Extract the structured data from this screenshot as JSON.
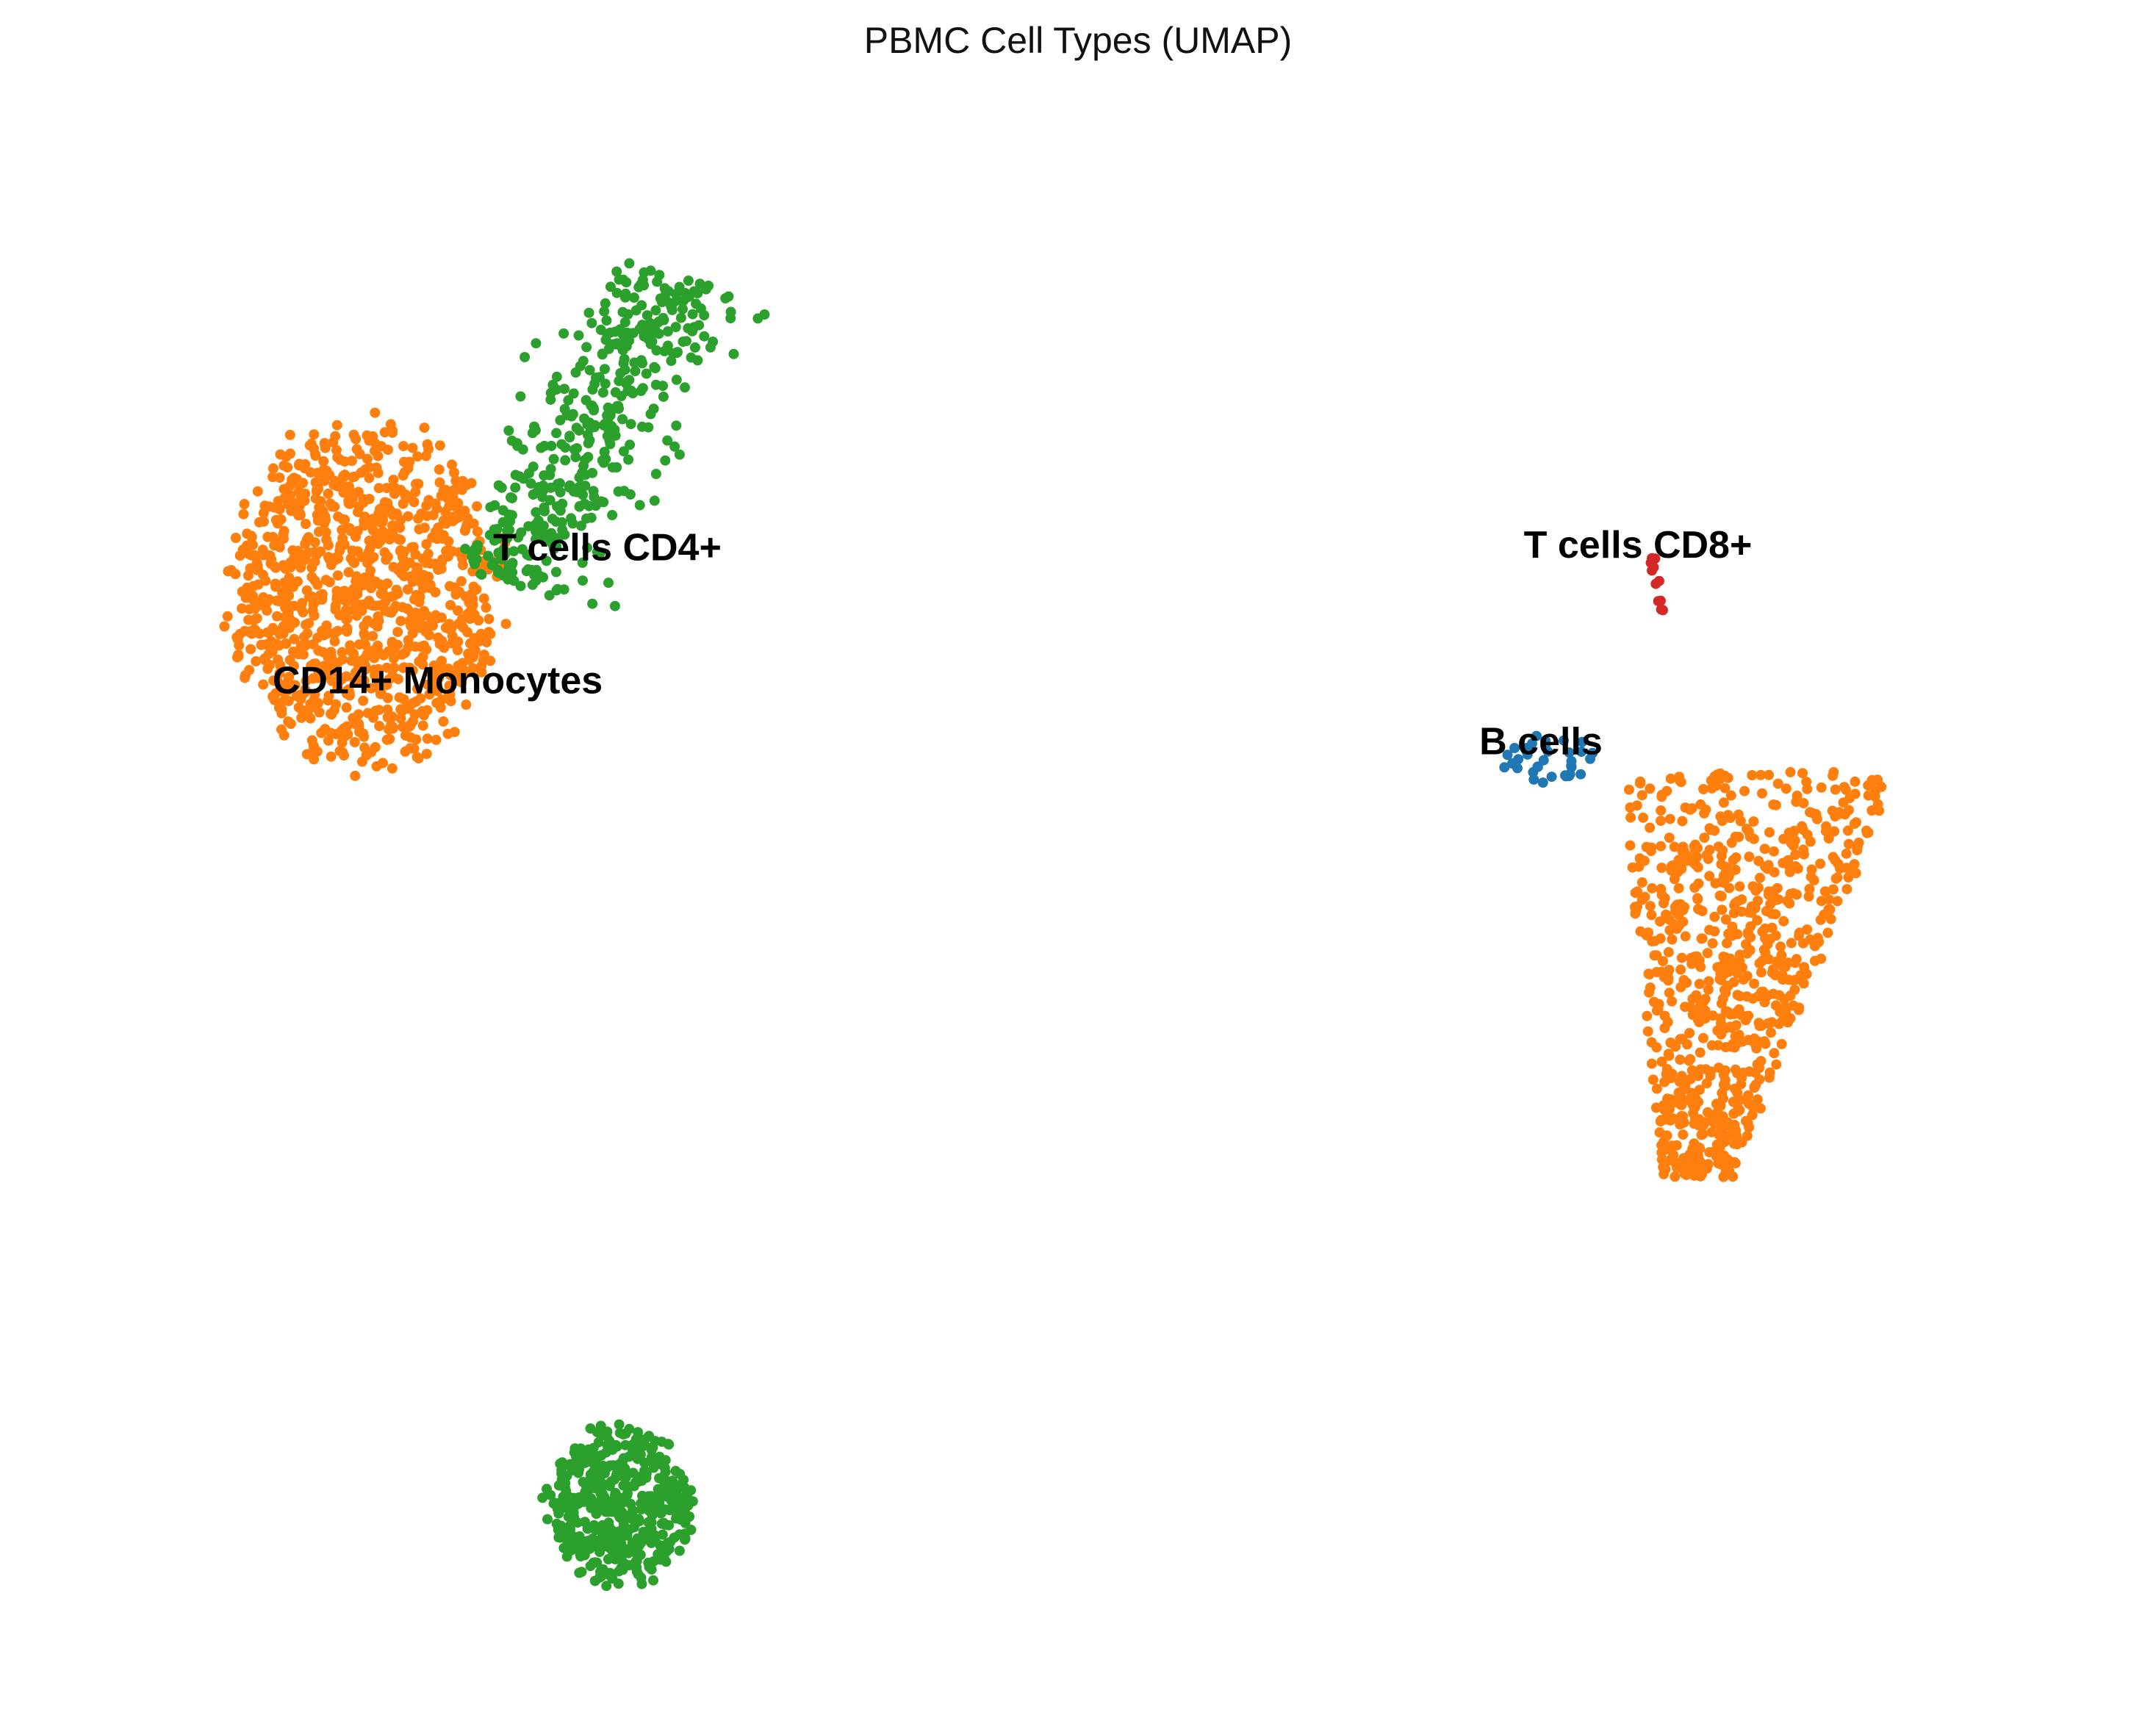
{
  "chart_data": {
    "type": "scatter",
    "title": "PBMC Cell Types (UMAP)",
    "xlabel": "",
    "ylabel": "",
    "axes_visible": false,
    "grid": false,
    "legend": "none",
    "xlim": [
      0,
      16
    ],
    "ylim": [
      0,
      12.5
    ],
    "colors": {
      "CD14+ Monocytes": "#ff7f0e",
      "T cells CD4+": "#2ca02c",
      "T cells CD8+": "#d62728",
      "B cells": "#1f77b4"
    },
    "clusters": [
      {
        "cell_type": "CD14+ Monocytes",
        "center": [
          2.1,
          8.5
        ],
        "spread": [
          1.1,
          1.35
        ],
        "n_points": 1050,
        "shape": "blob"
      },
      {
        "cell_type": "T cells CD4+",
        "center": [
          4.0,
          9.8
        ],
        "spread": [
          0.75,
          1.35
        ],
        "n_points": 430,
        "shape": "diagonal-band"
      },
      {
        "cell_type": "T cells CD4+",
        "center": [
          4.2,
          1.3
        ],
        "spread": [
          0.6,
          0.62
        ],
        "n_points": 460,
        "shape": "blob"
      },
      {
        "cell_type": "CD14+ Monocytes",
        "center": [
          13.6,
          5.5
        ],
        "spread": [
          1.15,
          1.6
        ],
        "n_points": 780,
        "shape": "triangle"
      },
      {
        "cell_type": "B cells",
        "center": [
          11.9,
          7.2
        ],
        "spread": [
          0.4,
          0.2
        ],
        "n_points": 35,
        "shape": "blob"
      },
      {
        "cell_type": "T cells CD8+",
        "center": [
          12.7,
          8.7
        ],
        "spread": [
          0.06,
          0.2
        ],
        "n_points": 12,
        "shape": "streak"
      }
    ],
    "annotations": [
      {
        "text": "CD14+ Monocytes",
        "x": 2.7,
        "y": 7.8
      },
      {
        "text": "T cells CD4+",
        "x": 4.1,
        "y": 8.85
      },
      {
        "text": "T cells CD8+",
        "x": 12.6,
        "y": 8.87
      },
      {
        "text": "B cells",
        "x": 11.8,
        "y": 7.32
      }
    ]
  }
}
